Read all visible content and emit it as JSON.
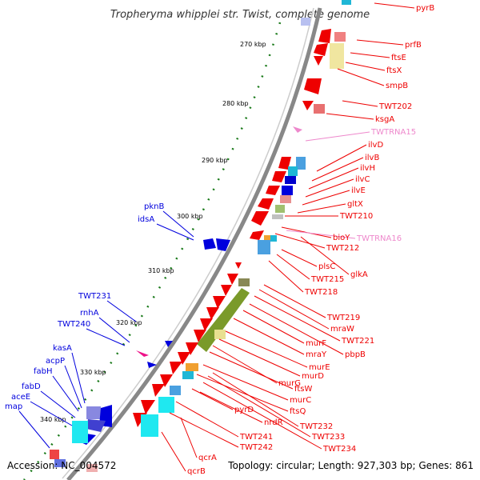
{
  "title": "Tropheryma whipplei str. Twist, complete genome",
  "footer": {
    "accession": "Accession: NC_004572",
    "summary": "Topology: circular; Length: 927,303 bp; Genes: 861"
  },
  "colors": {
    "plus_strand": "#0000dd",
    "minus_strand": "#ee0000",
    "rna": "#ee88cc",
    "backbone": "#888888",
    "ticks": "#1a7a1a"
  },
  "kbp_ticks": [
    "270 kbp",
    "280 kbp",
    "290 kbp",
    "300 kbp",
    "310 kbp",
    "320 kbp",
    "330 kbp",
    "340 kbp"
  ],
  "right_labels": [
    "pyrB",
    "prfB",
    "ftsE",
    "ftsX",
    "smpB",
    "TWT202",
    "ksgA",
    "TWTRNA15",
    "ilvD",
    "ilvB",
    "ilvH",
    "ilvC",
    "ilvE",
    "gltX",
    "TWT210",
    "bioY",
    "TWTRNA16",
    "TWT212",
    "plsC",
    "glkA",
    "TWT215",
    "TWT218",
    "TWT219",
    "mraW",
    "TWT221",
    "pbpB",
    "murF",
    "mraY",
    "murE",
    "murD",
    "murG",
    "ftsW",
    "murC",
    "ftsQ",
    "TWT232",
    "TWT233",
    "TWT234",
    "nrdR",
    "pyrD",
    "TWT241",
    "TWT242",
    "qcrA",
    "qcrB"
  ],
  "left_labels": [
    "pknB",
    "idsA",
    "TWT231",
    "rnhA",
    "TWT240",
    "kasA",
    "acpP",
    "fabH",
    "fabD",
    "aceE",
    "map"
  ]
}
